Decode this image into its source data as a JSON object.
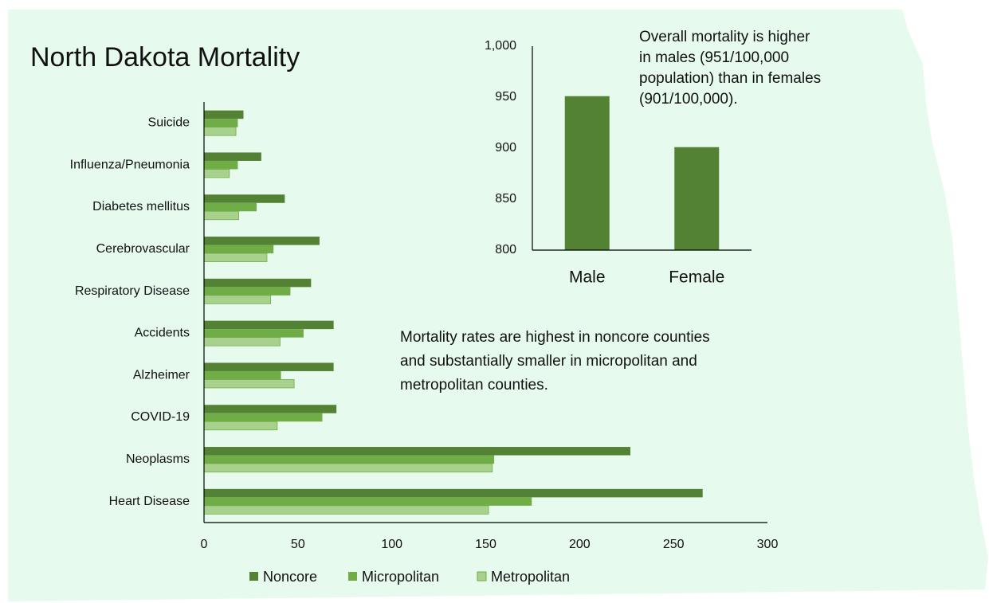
{
  "chart_data": [
    {
      "type": "bar",
      "orientation": "horizontal",
      "title": "North Dakota Mortality",
      "categories": [
        "Suicide",
        "Influenza/Pneumonia",
        "Diabetes mellitus",
        "Cerebrovascular",
        "Respiratory Disease",
        "Accidents",
        "Alzheimer",
        "COVID-19",
        "Neoplasms",
        "Heart Disease"
      ],
      "series": [
        {
          "name": "Noncore",
          "color": "#548235",
          "values": [
            21,
            30.5,
            43,
            61.5,
            57,
            69,
            69,
            70.5,
            227,
            265.5
          ]
        },
        {
          "name": "Micropolitan",
          "color": "#70ad47",
          "values": [
            18,
            18,
            28,
            37,
            46,
            53,
            41,
            63,
            154.5,
            174.5
          ]
        },
        {
          "name": "Metropolitan",
          "color": "#a9d18e",
          "values": [
            17,
            13.5,
            18.5,
            33.5,
            35.5,
            40.5,
            48,
            39,
            153.5,
            151.5
          ]
        }
      ],
      "xlim": [
        0,
        300
      ],
      "xticks": [
        0,
        50,
        100,
        150,
        200,
        250,
        300
      ],
      "grid": false,
      "legend": "bottom",
      "annotations": [
        [
          "Mortality rates are highest in noncore counties",
          "and substantially smaller in micropolitan and",
          "metropolitan counties."
        ]
      ]
    },
    {
      "type": "bar",
      "orientation": "vertical",
      "categories": [
        "Male",
        "Female"
      ],
      "values": [
        951,
        901
      ],
      "color": "#548235",
      "ylim": [
        800,
        1000
      ],
      "yticks": [
        800,
        850,
        900,
        950,
        {
          "value": 1000,
          "label": "1,000"
        }
      ],
      "grid": false,
      "annotations": [
        [
          "Overall mortality is higher",
          "in males (951/100,000",
          "population) than in females",
          "(901/100,000)."
        ]
      ]
    }
  ]
}
